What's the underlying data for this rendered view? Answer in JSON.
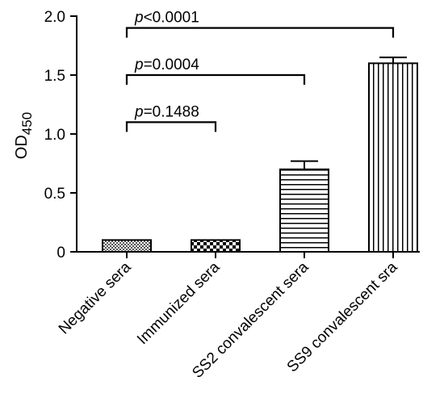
{
  "chart_data": {
    "type": "bar",
    "categories": [
      "Negative sera",
      "Immunized sera",
      "SS2 convalescent sera",
      "SS9 convalescent sra"
    ],
    "values": [
      0.1,
      0.1,
      0.7,
      1.6
    ],
    "errors": [
      0.0,
      0.0,
      0.07,
      0.05
    ],
    "patterns": [
      "crosshatch-fine",
      "checkerboard",
      "horizontal-lines",
      "vertical-lines"
    ],
    "ylabel": "OD",
    "ylabel_subscript": "450",
    "ylim": [
      0,
      2.0
    ],
    "yticks": [
      "0",
      "0.5",
      "1.0",
      "1.5",
      "2.0"
    ],
    "ytick_values": [
      0,
      0.5,
      1.0,
      1.5,
      2.0
    ],
    "comparisons": [
      {
        "from": 0,
        "to": 1,
        "y": 1.1,
        "p_prefix": "p",
        "p_rest": "=0.1488"
      },
      {
        "from": 0,
        "to": 2,
        "y": 1.5,
        "p_prefix": "p",
        "p_rest": "=0.0004"
      },
      {
        "from": 0,
        "to": 3,
        "y": 1.9,
        "p_prefix": "p",
        "p_rest": "<0.0001"
      }
    ],
    "grid": false,
    "legend": "none"
  }
}
